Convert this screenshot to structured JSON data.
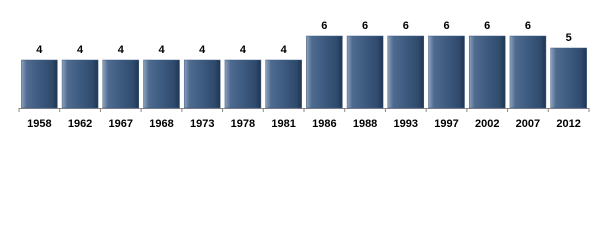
{
  "chart_data": {
    "type": "bar",
    "categories": [
      "1958",
      "1962",
      "1967",
      "1968",
      "1973",
      "1978",
      "1981",
      "1986",
      "1988",
      "1993",
      "1997",
      "2002",
      "2007",
      "2012"
    ],
    "values": [
      4,
      4,
      4,
      4,
      4,
      4,
      4,
      6,
      6,
      6,
      6,
      6,
      6,
      5
    ],
    "color": "#3d5a80"
  }
}
